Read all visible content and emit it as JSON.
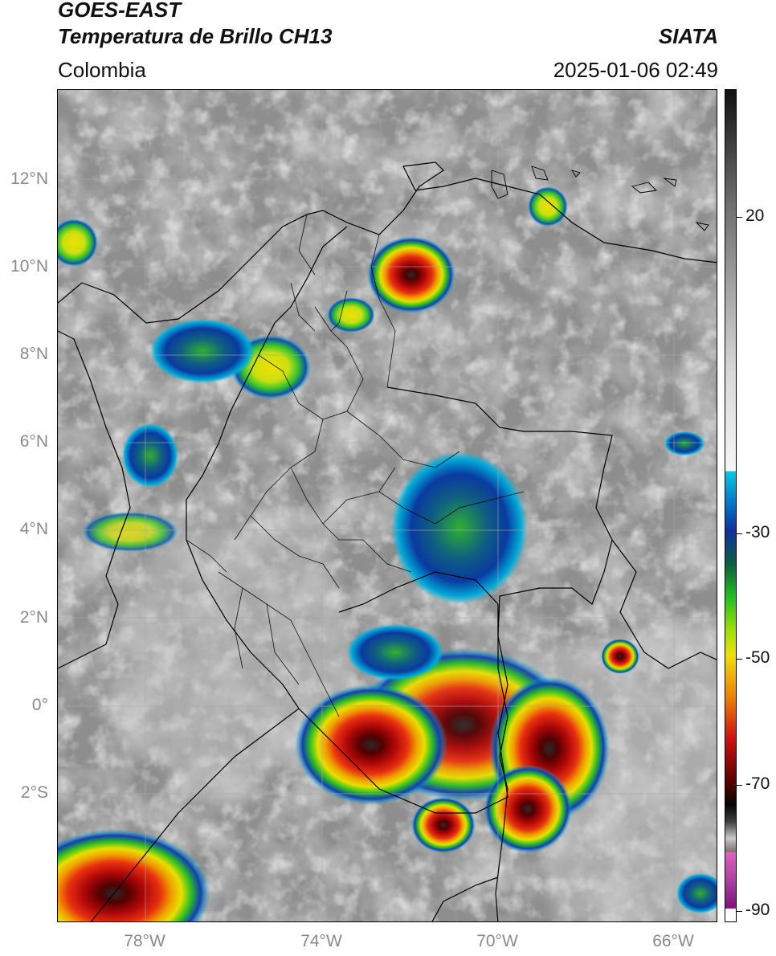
{
  "header": {
    "satellite": "GOES-EAST",
    "product": "Temperatura de Brillo CH13",
    "region": "Colombia",
    "agency": "SIATA",
    "datetime": "2025-01-06 02:49"
  },
  "map": {
    "lat_labels": [
      "12°N",
      "10°N",
      "8°N",
      "6°N",
      "4°N",
      "2°N",
      "0°",
      "2°S"
    ],
    "lon_labels": [
      "78°W",
      "74°W",
      "70°W",
      "66°W"
    ],
    "lat_range": [
      -4.9,
      14.0
    ],
    "lon_range": [
      -80.0,
      -65.0
    ]
  },
  "colorbar": {
    "unit_scale": "°C",
    "range": [
      -92,
      35
    ],
    "tick_labels": [
      "20",
      "-30",
      "-50",
      "-70",
      "-90"
    ],
    "tick_values": [
      20,
      -30,
      -50,
      -70,
      -90
    ],
    "colors": {
      "dark_top": "#111111",
      "gray_mid": "#9a9a9a",
      "white": "#f4f4f4",
      "cyan": "#00c8e8",
      "blue": "#1030a0",
      "green": "#20c020",
      "yellow": "#f0e000",
      "orange": "#f08000",
      "red": "#d01010",
      "dark_red": "#600000",
      "black": "#050505",
      "light_gray": "#c8c8c8",
      "pink": "#e060c0",
      "purple": "#801080"
    }
  }
}
